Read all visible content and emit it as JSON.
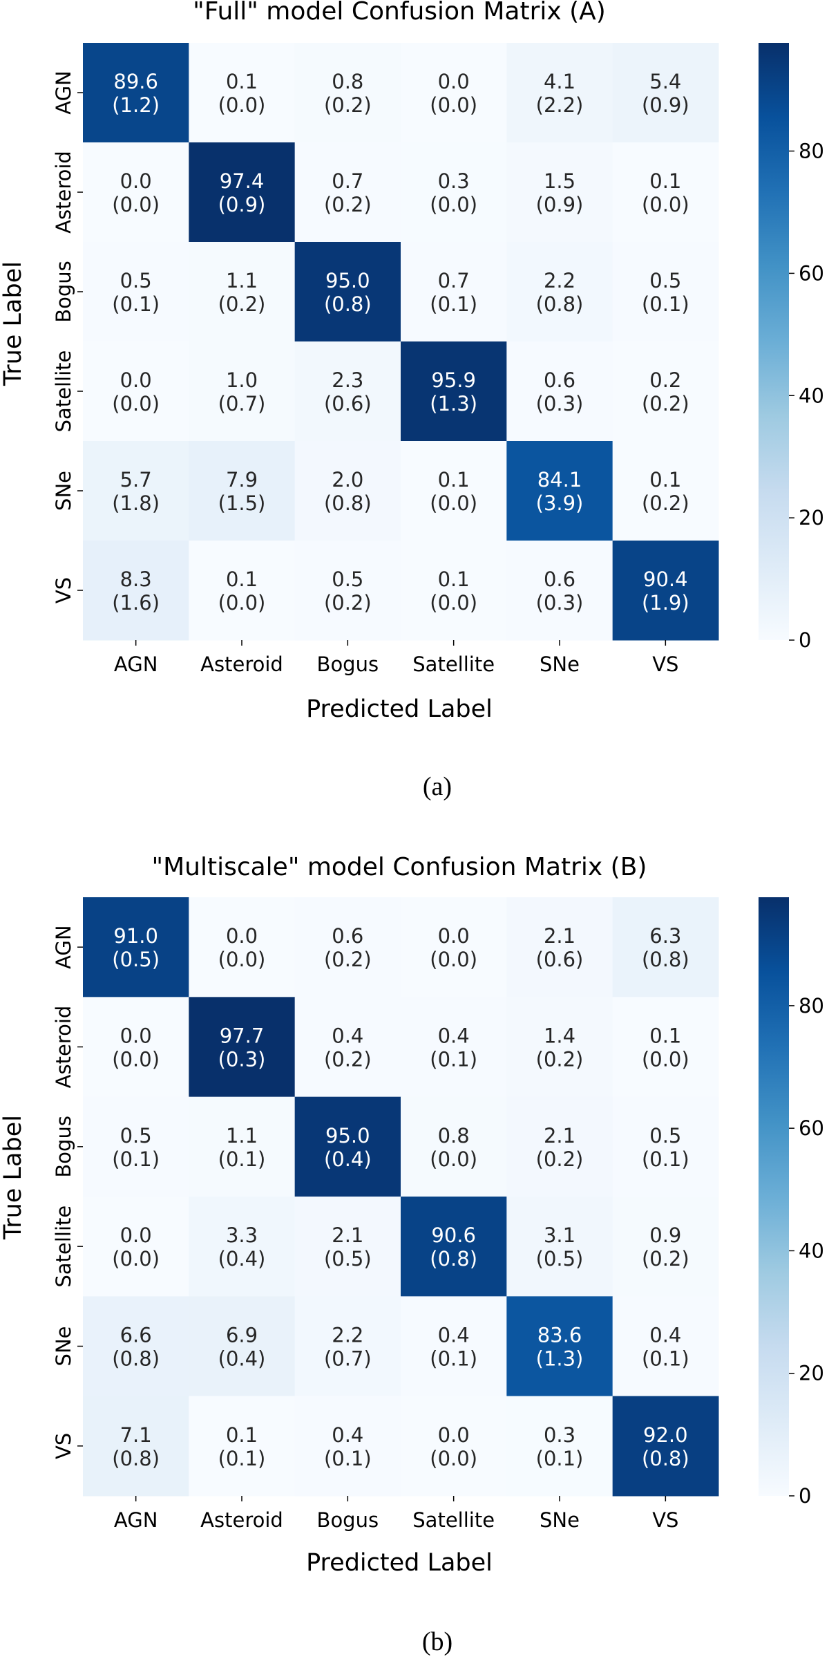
{
  "chart_data": [
    {
      "type": "heatmap",
      "title": "\"Full\" model Confusion Matrix (A)",
      "xlabel": "Predicted Label",
      "ylabel": "True Label",
      "caption": "(a)",
      "x_categories": [
        "AGN",
        "Asteroid",
        "Bogus",
        "Satellite",
        "SNe",
        "VS"
      ],
      "y_categories": [
        "AGN",
        "Asteroid",
        "Bogus",
        "Satellite",
        "SNe",
        "VS"
      ],
      "values": [
        [
          89.6,
          0.1,
          0.8,
          0.0,
          4.1,
          5.4
        ],
        [
          0.0,
          97.4,
          0.7,
          0.3,
          1.5,
          0.1
        ],
        [
          0.5,
          1.1,
          95.0,
          0.7,
          2.2,
          0.5
        ],
        [
          0.0,
          1.0,
          2.3,
          95.9,
          0.6,
          0.2
        ],
        [
          5.7,
          7.9,
          2.0,
          0.1,
          84.1,
          0.1
        ],
        [
          8.3,
          0.1,
          0.5,
          0.1,
          0.6,
          90.4
        ]
      ],
      "std": [
        [
          1.2,
          0.0,
          0.2,
          0.0,
          2.2,
          0.9
        ],
        [
          0.0,
          0.9,
          0.2,
          0.0,
          0.9,
          0.0
        ],
        [
          0.1,
          0.2,
          0.8,
          0.1,
          0.8,
          0.1
        ],
        [
          0.0,
          0.7,
          0.6,
          1.3,
          0.3,
          0.2
        ],
        [
          1.8,
          1.5,
          0.8,
          0.0,
          3.9,
          0.2
        ],
        [
          1.6,
          0.0,
          0.2,
          0.0,
          0.3,
          1.9
        ]
      ],
      "colorbar": {
        "range": [
          0,
          97.7
        ],
        "ticks": [
          0,
          20,
          40,
          60,
          80
        ],
        "colormap": "Blues"
      }
    },
    {
      "type": "heatmap",
      "title": "\"Multiscale\" model Confusion Matrix (B)",
      "xlabel": "Predicted Label",
      "ylabel": "True Label",
      "caption": "(b)",
      "x_categories": [
        "AGN",
        "Asteroid",
        "Bogus",
        "Satellite",
        "SNe",
        "VS"
      ],
      "y_categories": [
        "AGN",
        "Asteroid",
        "Bogus",
        "Satellite",
        "SNe",
        "VS"
      ],
      "values": [
        [
          91.0,
          0.0,
          0.6,
          0.0,
          2.1,
          6.3
        ],
        [
          0.0,
          97.7,
          0.4,
          0.4,
          1.4,
          0.1
        ],
        [
          0.5,
          1.1,
          95.0,
          0.8,
          2.1,
          0.5
        ],
        [
          0.0,
          3.3,
          2.1,
          90.6,
          3.1,
          0.9
        ],
        [
          6.6,
          6.9,
          2.2,
          0.4,
          83.6,
          0.4
        ],
        [
          7.1,
          0.1,
          0.4,
          0.0,
          0.3,
          92.0
        ]
      ],
      "std": [
        [
          0.5,
          0.0,
          0.2,
          0.0,
          0.6,
          0.8
        ],
        [
          0.0,
          0.3,
          0.2,
          0.1,
          0.2,
          0.0
        ],
        [
          0.1,
          0.1,
          0.4,
          0.0,
          0.2,
          0.1
        ],
        [
          0.0,
          0.4,
          0.5,
          0.8,
          0.5,
          0.2
        ],
        [
          0.8,
          0.4,
          0.7,
          0.1,
          1.3,
          0.1
        ],
        [
          0.8,
          0.1,
          0.1,
          0.0,
          0.1,
          0.8
        ]
      ],
      "colorbar": {
        "range": [
          0,
          97.7
        ],
        "ticks": [
          0,
          20,
          40,
          60,
          80
        ],
        "colormap": "Blues"
      }
    }
  ]
}
